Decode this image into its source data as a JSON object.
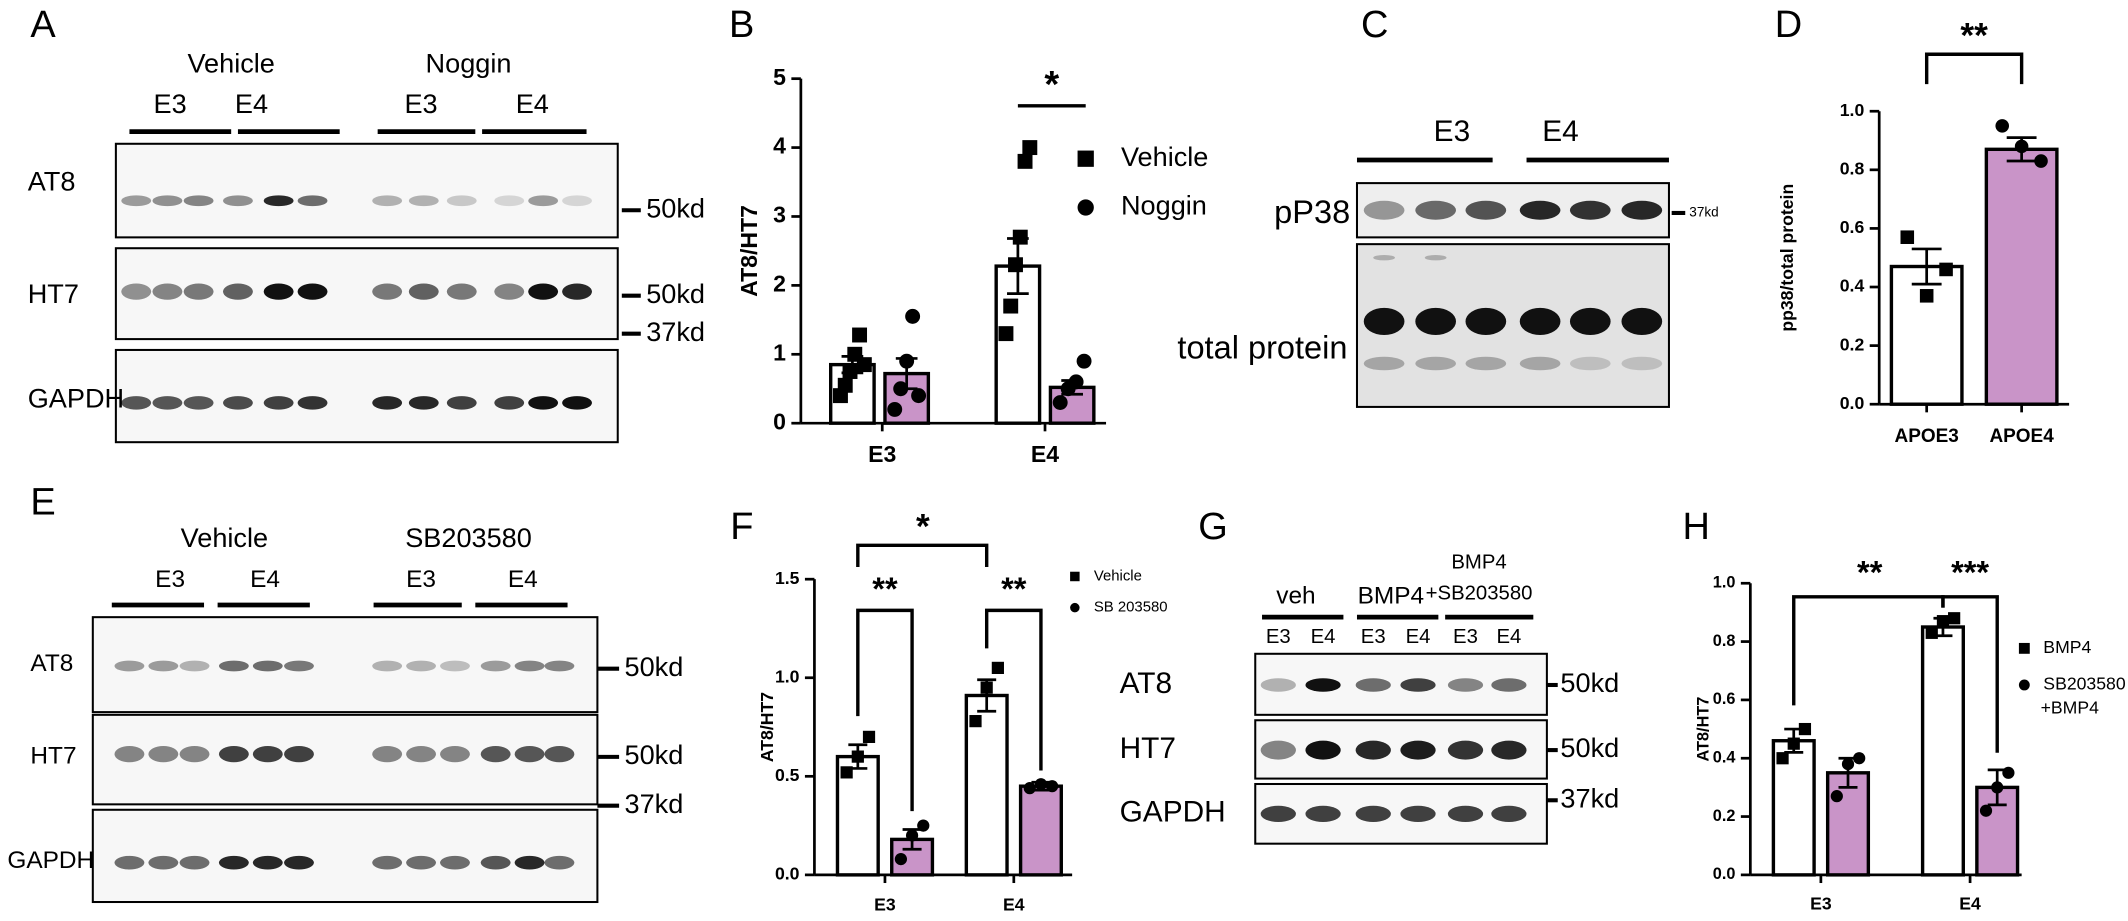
{
  "panel_labels": [
    "A",
    "B",
    "C",
    "D",
    "E",
    "F",
    "G",
    "H"
  ],
  "blots": [
    {
      "groups": [
        {
          "name": "Vehicle",
          "lanes": [
            "E3",
            "E4"
          ]
        },
        {
          "name": "Noggin",
          "lanes": [
            "E3",
            "E4"
          ]
        }
      ],
      "rows": [
        {
          "name": "AT8",
          "marker": "50kd"
        },
        {
          "name": "HT7",
          "marker": "50kd"
        },
        {
          "name": "GAPDH",
          "marker": "37kd"
        }
      ]
    },
    {
      "groups": [
        {
          "lanes": [
            "E3",
            "E4"
          ]
        }
      ],
      "rows": [
        {
          "name": "pP38",
          "marker": "37kd"
        },
        {
          "name": "total protein"
        }
      ]
    },
    {
      "groups": [
        {
          "name": "Vehicle",
          "lanes": [
            "E3",
            "E4"
          ]
        },
        {
          "name": "SB203580",
          "lanes": [
            "E3",
            "E4"
          ]
        }
      ],
      "rows": [
        {
          "name": "AT8",
          "marker": "50kd"
        },
        {
          "name": "HT7",
          "marker": "50kd"
        },
        {
          "name": "GAPDH",
          "marker": "37kd"
        }
      ]
    },
    {
      "groups": [
        {
          "name": "veh",
          "lanes": [
            "E3",
            "E4"
          ]
        },
        {
          "name": "BMP4",
          "lanes": [
            "E3",
            "E4"
          ]
        },
        {
          "name": [
            "BMP4",
            "+SB203580"
          ],
          "lanes": [
            "E3",
            "E4"
          ]
        }
      ],
      "rows": [
        {
          "name": "AT8",
          "marker": "50kd"
        },
        {
          "name": "HT7",
          "marker": "50kd"
        },
        {
          "name": "GAPDH",
          "marker": "37kd"
        }
      ]
    }
  ],
  "chart_data": [
    {
      "type": "bar",
      "y_label": "AT8/HT7",
      "categories": [
        "E3",
        "E4"
      ],
      "ylim": [
        0,
        5
      ],
      "yticks": [
        0,
        1,
        2,
        3,
        4,
        5
      ],
      "series": [
        {
          "name": "Vehicle",
          "color": "#ffffff",
          "marker": "square",
          "values": [
            0.85,
            2.28
          ],
          "errors": [
            0.12,
            0.4
          ],
          "points": [
            [
              0.4,
              0.55,
              0.75,
              1.0,
              1.28,
              0.85
            ],
            [
              1.3,
              1.7,
              2.3,
              2.7,
              3.8,
              4.0
            ]
          ]
        },
        {
          "name": "Noggin",
          "color": "#c994c8",
          "marker": "circle",
          "values": [
            0.72,
            0.52
          ],
          "errors": [
            0.22,
            0.1
          ],
          "points": [
            [
              0.2,
              0.5,
              0.9,
              1.55,
              0.4
            ],
            [
              0.3,
              0.5,
              0.6,
              0.9
            ]
          ]
        }
      ],
      "annotations": [
        "*"
      ]
    },
    {
      "type": "bar",
      "y_label": "pp38/total protein",
      "categories": [
        "APOE3",
        "APOE4"
      ],
      "ylim": [
        0,
        1
      ],
      "yticks": [
        {
          "value": 0,
          "label": "0.0"
        },
        0.2,
        0.4,
        0.6,
        0.8,
        {
          "value": 1,
          "label": "1.0"
        }
      ],
      "series": [
        {
          "colors": [
            "#ffffff",
            "#c994c8"
          ],
          "markers": [
            "square",
            "circle"
          ],
          "values": [
            0.47,
            0.87
          ],
          "errors": [
            0.06,
            0.04
          ],
          "points": [
            [
              0.57,
              0.37,
              0.46
            ],
            [
              0.95,
              0.88,
              0.83
            ]
          ]
        }
      ],
      "annotations": [
        "**"
      ]
    },
    {
      "type": "bar",
      "y_label": "AT8/HT7",
      "categories": [
        "E3",
        "E4"
      ],
      "ylim": [
        0,
        1.5
      ],
      "yticks": [
        {
          "value": 0,
          "label": "0.0"
        },
        0.5,
        {
          "value": 1,
          "label": "1.0"
        },
        1.5
      ],
      "series": [
        {
          "name": "Vehicle",
          "color": "#ffffff",
          "marker": "square",
          "values": [
            0.6,
            0.91
          ],
          "errors": [
            0.06,
            0.08
          ],
          "points": [
            [
              0.52,
              0.6,
              0.7
            ],
            [
              0.78,
              0.95,
              1.05
            ]
          ]
        },
        {
          "name": "SB 203580",
          "color": "#c994c8",
          "marker": "circle",
          "values": [
            0.18,
            0.45
          ],
          "errors": [
            0.05,
            0.02
          ],
          "points": [
            [
              0.08,
              0.2,
              0.25
            ],
            [
              0.44,
              0.46,
              0.45
            ]
          ]
        }
      ],
      "annotations": [
        "*",
        "**",
        "**"
      ]
    },
    {
      "type": "bar",
      "y_label": "AT8/HT7",
      "categories": [
        "E3",
        "E4"
      ],
      "ylim": [
        0,
        1
      ],
      "yticks": [
        {
          "value": 0,
          "label": "0.0"
        },
        0.2,
        0.4,
        0.6,
        0.8,
        {
          "value": 1,
          "label": "1.0"
        }
      ],
      "series": [
        {
          "name": "BMP4",
          "color": "#ffffff",
          "marker": "square",
          "values": [
            0.46,
            0.85
          ],
          "errors": [
            0.04,
            0.03
          ],
          "points": [
            [
              0.4,
              0.45,
              0.5
            ],
            [
              0.83,
              0.87,
              0.88
            ]
          ]
        },
        {
          "name": [
            "SB203580",
            "+BMP4"
          ],
          "color": "#c994c8",
          "marker": "circle",
          "values": [
            0.35,
            0.3
          ],
          "errors": [
            0.05,
            0.06
          ],
          "points": [
            [
              0.27,
              0.38,
              0.4
            ],
            [
              0.22,
              0.3,
              0.35
            ]
          ]
        }
      ],
      "annotations": [
        "**",
        "***"
      ]
    }
  ]
}
